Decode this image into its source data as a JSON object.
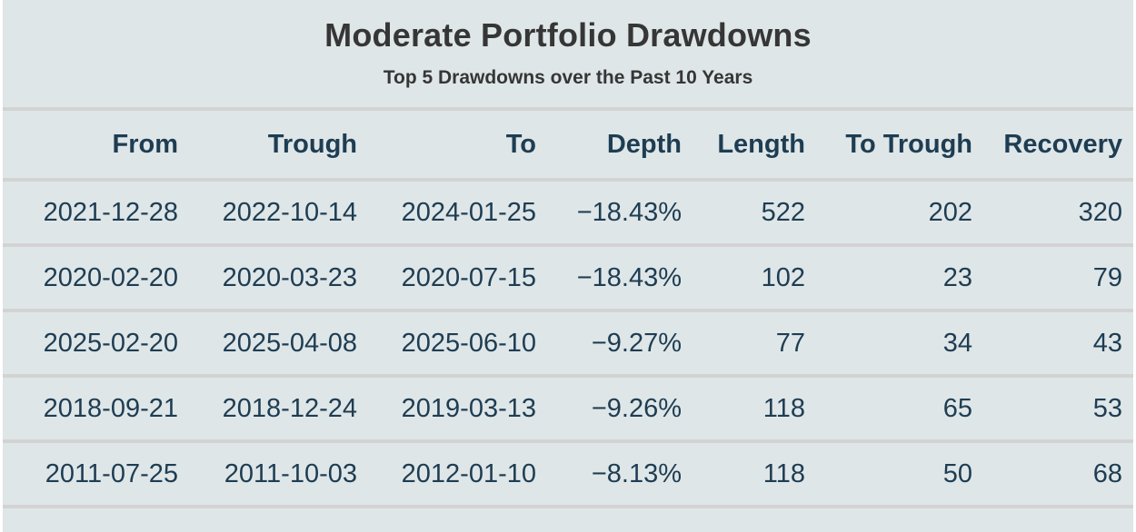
{
  "chart_data": {
    "type": "table",
    "title": "Moderate Portfolio Drawdowns",
    "subtitle": "Top 5 Drawdowns over the Past 10 Years",
    "columns": [
      "From",
      "Trough",
      "To",
      "Depth",
      "Length",
      "To Trough",
      "Recovery"
    ],
    "rows": [
      [
        "2021-12-28",
        "2022-10-14",
        "2024-01-25",
        "−18.43%",
        "522",
        "202",
        "320"
      ],
      [
        "2020-02-20",
        "2020-03-23",
        "2020-07-15",
        "−18.43%",
        "102",
        "23",
        "79"
      ],
      [
        "2025-02-20",
        "2025-04-08",
        "2025-06-10",
        "−9.27%",
        "77",
        "34",
        "43"
      ],
      [
        "2018-09-21",
        "2018-12-24",
        "2019-03-13",
        "−9.26%",
        "118",
        "65",
        "53"
      ],
      [
        "2011-07-25",
        "2011-10-03",
        "2012-01-10",
        "−8.13%",
        "118",
        "50",
        "68"
      ]
    ]
  },
  "colors": {
    "table_background": "#dfe6e8",
    "divider": "#d3d3d3",
    "title_text": "#363636",
    "table_text": "#1e3d52"
  }
}
